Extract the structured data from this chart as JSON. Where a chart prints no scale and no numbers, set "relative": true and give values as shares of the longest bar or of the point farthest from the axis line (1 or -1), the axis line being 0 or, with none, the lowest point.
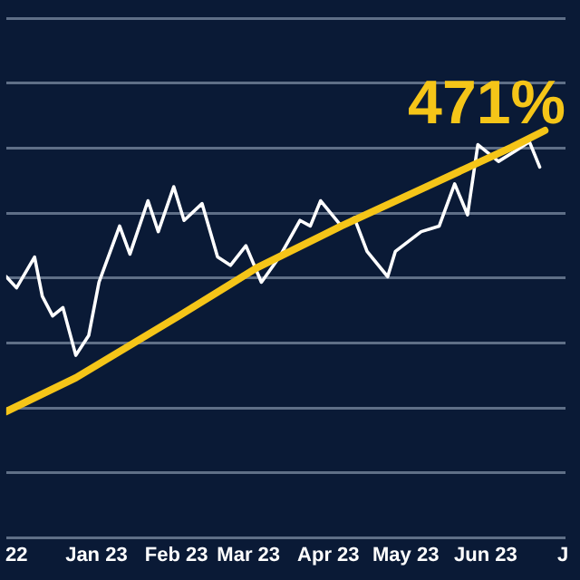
{
  "chart_data": {
    "type": "line",
    "relative": true,
    "annotations": [
      "471%"
    ],
    "xlim": [
      "2022-11-27",
      "2023-07-02"
    ],
    "xticks": [
      {
        "value": "2022-12-01",
        "label": "22"
      },
      {
        "value": "2023-01-01",
        "label": "Jan 23"
      },
      {
        "value": "2023-02-01",
        "label": "Feb 23"
      },
      {
        "value": "2023-03-01",
        "label": "Mar 23"
      },
      {
        "value": "2023-04-01",
        "label": "Apr 23"
      },
      {
        "value": "2023-05-01",
        "label": "May 23"
      },
      {
        "value": "2023-06-01",
        "label": "Jun 23"
      },
      {
        "value": "2023-07-01",
        "label": "J"
      }
    ],
    "series": [
      {
        "color": "#ffffff",
        "x": [
          "2022-11-27",
          "2022-12-01",
          "2022-12-08",
          "2022-12-11",
          "2022-12-15",
          "2022-12-19",
          "2022-12-24",
          "2022-12-29",
          "2023-01-02",
          "2023-01-10",
          "2023-01-14",
          "2023-01-21",
          "2023-01-25",
          "2023-01-31",
          "2023-02-04",
          "2023-02-11",
          "2023-02-17",
          "2023-02-22",
          "2023-02-28",
          "2023-03-06",
          "2023-03-13",
          "2023-03-21",
          "2023-03-25",
          "2023-03-29",
          "2023-04-06",
          "2023-04-11",
          "2023-04-16",
          "2023-04-24",
          "2023-04-27",
          "2023-05-07",
          "2023-05-14",
          "2023-05-20",
          "2023-05-25",
          "2023-05-29",
          "2023-06-06",
          "2023-06-13",
          "2023-06-18",
          "2023-06-22"
        ],
        "values": [
          0.48,
          0.44,
          0.55,
          0.41,
          0.34,
          0.37,
          0.2,
          0.27,
          0.46,
          0.66,
          0.56,
          0.75,
          0.64,
          0.8,
          0.68,
          0.74,
          0.55,
          0.52,
          0.59,
          0.46,
          0.55,
          0.68,
          0.66,
          0.75,
          0.66,
          0.69,
          0.57,
          0.48,
          0.57,
          0.64,
          0.66,
          0.81,
          0.7,
          0.95,
          0.89,
          0.93,
          0.96,
          0.87
        ]
      },
      {
        "color": "#f5c518",
        "x": [
          "2022-11-27",
          "2022-12-24",
          "2023-02-02",
          "2023-03-04",
          "2023-04-06",
          "2023-05-09",
          "2023-06-11",
          "2023-06-24"
        ],
        "values": [
          0,
          0.12,
          0.34,
          0.51,
          0.66,
          0.8,
          0.94,
          1
        ]
      }
    ],
    "grid": "y",
    "legend": false,
    "marker": "none",
    "line_style": "solid"
  }
}
